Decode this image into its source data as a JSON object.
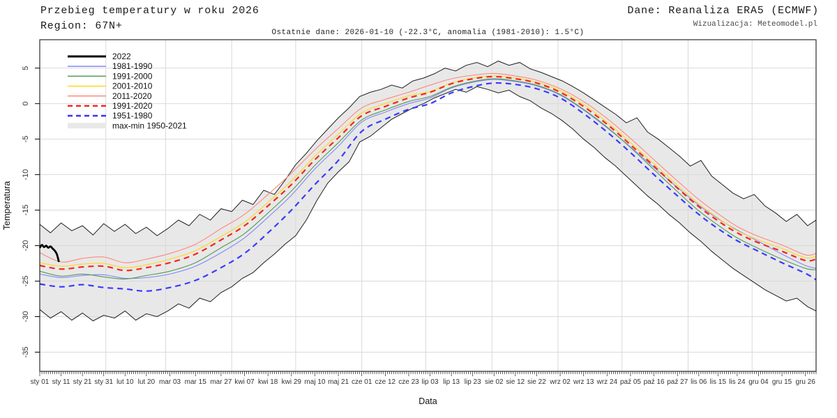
{
  "header": {
    "title_line1": "Przebieg temperatury w roku 2026",
    "title_line2": "Region: 67N+",
    "source": "Dane: Reanaliza ERA5 (ECMWF)",
    "credit": "Wizualizacja: Meteomodel.pl",
    "subtitle": "Ostatnie dane: 2026-01-10 (-22.3°C, anomalia (1981-2010): 1.5°C)"
  },
  "chart_data": {
    "type": "line",
    "title": "Przebieg temperatury w roku 2026",
    "region": "Region: 67N+",
    "xlabel": "Data",
    "ylabel": "Temperatura",
    "ylim": [
      -37.7,
      9.0
    ],
    "days_in_year": 365,
    "grid": true,
    "legend_position": "top-left",
    "colors": {
      "grid": "#d9d9d9",
      "band_fill": "#e8e8e8",
      "band_edge": "#1f1f1f",
      "axis": "#000000",
      "tick_text": "#333333"
    },
    "y_ticks": [
      5,
      0,
      -5,
      -10,
      -15,
      -20,
      -25,
      -30,
      -35
    ],
    "x_ticks": [
      {
        "label": "sty 01",
        "day": 1
      },
      {
        "label": "sty 11",
        "day": 11
      },
      {
        "label": "sty 21",
        "day": 21
      },
      {
        "label": "sty 31",
        "day": 31
      },
      {
        "label": "lut 10",
        "day": 41
      },
      {
        "label": "lut 20",
        "day": 51
      },
      {
        "label": "mar 03",
        "day": 62
      },
      {
        "label": "mar 15",
        "day": 74
      },
      {
        "label": "mar 27",
        "day": 86
      },
      {
        "label": "kwi 07",
        "day": 97
      },
      {
        "label": "kwi 18",
        "day": 108
      },
      {
        "label": "kwi 29",
        "day": 119
      },
      {
        "label": "maj 10",
        "day": 130
      },
      {
        "label": "maj 21",
        "day": 141
      },
      {
        "label": "cze 01",
        "day": 152
      },
      {
        "label": "cze 12",
        "day": 163
      },
      {
        "label": "cze 23",
        "day": 174
      },
      {
        "label": "lip 03",
        "day": 184
      },
      {
        "label": "lip 13",
        "day": 194
      },
      {
        "label": "lip 23",
        "day": 204
      },
      {
        "label": "sie 02",
        "day": 214
      },
      {
        "label": "sie 12",
        "day": 224
      },
      {
        "label": "sie 22",
        "day": 234
      },
      {
        "label": "wrz 02",
        "day": 245
      },
      {
        "label": "wrz 13",
        "day": 256
      },
      {
        "label": "wrz 24",
        "day": 267
      },
      {
        "label": "paź 05",
        "day": 278
      },
      {
        "label": "paź 16",
        "day": 289
      },
      {
        "label": "paź 27",
        "day": 300
      },
      {
        "label": "lis 06",
        "day": 310
      },
      {
        "label": "lis 15",
        "day": 319
      },
      {
        "label": "lis 24",
        "day": 328
      },
      {
        "label": "gru 04",
        "day": 338
      },
      {
        "label": "gru 15",
        "day": 349
      },
      {
        "label": "gru 26",
        "day": 360
      }
    ],
    "month_grid_days": [
      32,
      60,
      91,
      121,
      152,
      182,
      213,
      244,
      274,
      305,
      335
    ],
    "anchor_days": [
      1,
      11,
      21,
      31,
      41,
      51,
      62,
      74,
      86,
      97,
      108,
      119,
      130,
      141,
      152,
      163,
      174,
      184,
      194,
      204,
      214,
      224,
      234,
      245,
      256,
      267,
      278,
      289,
      300,
      310,
      319,
      328,
      338,
      349,
      360,
      365
    ],
    "band": {
      "name": "max-min 1950-2021",
      "days": [
        1,
        6,
        11,
        16,
        21,
        26,
        31,
        36,
        41,
        46,
        51,
        56,
        61,
        66,
        71,
        76,
        81,
        86,
        91,
        96,
        101,
        106,
        111,
        116,
        121,
        126,
        131,
        136,
        141,
        146,
        151,
        156,
        161,
        166,
        171,
        176,
        181,
        186,
        191,
        196,
        201,
        206,
        211,
        216,
        221,
        226,
        231,
        236,
        241,
        246,
        251,
        256,
        261,
        266,
        271,
        276,
        281,
        286,
        291,
        296,
        301,
        306,
        311,
        316,
        321,
        326,
        331,
        336,
        341,
        346,
        351,
        356,
        361,
        365
      ],
      "max": [
        -17.0,
        -18.2,
        -16.8,
        -17.9,
        -17.2,
        -18.5,
        -16.9,
        -18.0,
        -17.0,
        -18.3,
        -17.4,
        -18.6,
        -17.6,
        -16.4,
        -17.2,
        -15.6,
        -16.4,
        -14.8,
        -15.2,
        -13.6,
        -14.2,
        -12.2,
        -12.8,
        -10.8,
        -8.6,
        -7.0,
        -5.2,
        -3.6,
        -2.0,
        -0.6,
        1.0,
        1.6,
        2.0,
        2.6,
        2.2,
        3.2,
        3.6,
        4.2,
        5.0,
        4.6,
        5.4,
        5.8,
        5.2,
        6.0,
        5.4,
        5.8,
        4.9,
        4.4,
        3.8,
        3.2,
        2.4,
        1.5,
        0.5,
        -0.5,
        -1.5,
        -2.7,
        -2.0,
        -4.0,
        -5.0,
        -6.2,
        -7.4,
        -8.8,
        -8.0,
        -10.2,
        -11.4,
        -12.6,
        -13.4,
        -12.8,
        -14.4,
        -15.4,
        -16.6,
        -15.6,
        -17.2,
        -16.4
      ],
      "min": [
        -29.0,
        -30.2,
        -29.3,
        -30.5,
        -29.5,
        -30.6,
        -29.8,
        -30.2,
        -29.2,
        -30.5,
        -29.6,
        -30.0,
        -29.2,
        -28.2,
        -28.8,
        -27.4,
        -27.9,
        -26.6,
        -25.8,
        -24.6,
        -23.8,
        -22.4,
        -21.2,
        -19.8,
        -18.6,
        -16.4,
        -13.6,
        -11.2,
        -9.6,
        -8.2,
        -5.4,
        -4.6,
        -3.4,
        -2.2,
        -1.4,
        -0.6,
        0.0,
        0.8,
        1.4,
        2.0,
        1.6,
        2.4,
        2.0,
        1.5,
        1.9,
        1.0,
        0.4,
        -0.6,
        -1.4,
        -2.4,
        -3.6,
        -5.0,
        -6.2,
        -7.6,
        -8.8,
        -10.2,
        -11.6,
        -13.0,
        -14.2,
        -15.6,
        -16.8,
        -18.2,
        -19.4,
        -20.8,
        -22.0,
        -23.2,
        -24.2,
        -25.2,
        -26.2,
        -27.0,
        -27.8,
        -27.4,
        -28.6,
        -29.2
      ]
    },
    "series": [
      {
        "name": "1981-1990",
        "color": "#8585ff",
        "width": 1.1,
        "dash": "",
        "values": [
          -24.0,
          -24.5,
          -24.2,
          -24.1,
          -24.6,
          -24.5,
          -24.0,
          -22.9,
          -21.0,
          -18.9,
          -16.0,
          -12.9,
          -9.2,
          -6.0,
          -2.6,
          -1.2,
          0.0,
          0.8,
          2.2,
          3.0,
          3.4,
          3.1,
          2.5,
          1.2,
          -0.9,
          -3.4,
          -6.1,
          -9.0,
          -11.8,
          -14.3,
          -16.2,
          -17.8,
          -19.4,
          -21.2,
          -22.8,
          -23.2
        ]
      },
      {
        "name": "1991-2000",
        "color": "#4f9d55",
        "width": 1.1,
        "dash": "",
        "values": [
          -23.6,
          -24.3,
          -24.0,
          -24.4,
          -24.7,
          -24.2,
          -23.6,
          -22.4,
          -20.3,
          -18.3,
          -15.4,
          -12.3,
          -8.7,
          -5.5,
          -2.3,
          -0.9,
          0.3,
          1.0,
          2.3,
          3.1,
          3.5,
          3.2,
          2.6,
          1.3,
          -0.8,
          -3.3,
          -6.2,
          -9.3,
          -12.4,
          -15.1,
          -17.1,
          -18.9,
          -20.4,
          -21.9,
          -23.2,
          -23.4
        ]
      },
      {
        "name": "2001-2010",
        "color": "#ffd818",
        "width": 1.1,
        "dash": "",
        "values": [
          -22.4,
          -22.9,
          -22.6,
          -22.5,
          -23.1,
          -22.7,
          -21.9,
          -20.7,
          -18.7,
          -16.7,
          -13.9,
          -10.9,
          -7.4,
          -4.3,
          -1.3,
          0.0,
          1.1,
          1.7,
          2.9,
          3.6,
          3.9,
          3.6,
          3.0,
          1.8,
          -0.1,
          -2.6,
          -5.5,
          -8.5,
          -11.5,
          -14.1,
          -16.1,
          -17.9,
          -19.2,
          -20.4,
          -21.7,
          -21.5
        ]
      },
      {
        "name": "2011-2020",
        "color": "#ff887c",
        "width": 1.1,
        "dash": "",
        "values": [
          -21.0,
          -22.3,
          -21.8,
          -21.6,
          -22.4,
          -21.9,
          -21.1,
          -19.8,
          -17.6,
          -15.6,
          -12.8,
          -9.8,
          -6.5,
          -3.5,
          -0.6,
          0.6,
          1.6,
          2.6,
          3.5,
          4.0,
          4.25,
          3.9,
          3.3,
          2.1,
          0.3,
          -2.1,
          -4.9,
          -7.9,
          -10.9,
          -13.5,
          -15.5,
          -17.3,
          -18.7,
          -19.9,
          -21.3,
          -21.1
        ]
      },
      {
        "name": "1951-1980",
        "color": "#3a3aff",
        "width": 2.2,
        "dash": "8 6",
        "values": [
          -25.4,
          -25.8,
          -25.5,
          -25.9,
          -26.1,
          -26.4,
          -25.9,
          -24.9,
          -23.1,
          -21.1,
          -18.2,
          -15.0,
          -11.4,
          -8.0,
          -3.9,
          -2.2,
          -0.8,
          0.0,
          1.5,
          2.4,
          2.9,
          2.7,
          2.1,
          0.8,
          -1.4,
          -4.0,
          -6.9,
          -10.0,
          -13.0,
          -15.6,
          -17.6,
          -19.3,
          -20.8,
          -22.4,
          -23.9,
          -24.8
        ]
      },
      {
        "name": "1991-2020",
        "color": "#f5271c",
        "width": 2.2,
        "dash": "8 6",
        "values": [
          -22.8,
          -23.3,
          -23.0,
          -22.9,
          -23.5,
          -23.1,
          -22.4,
          -21.2,
          -19.2,
          -17.2,
          -14.4,
          -11.4,
          -7.9,
          -4.8,
          -1.7,
          -0.4,
          0.8,
          1.6,
          2.8,
          3.5,
          3.8,
          3.5,
          2.9,
          1.6,
          -0.4,
          -2.9,
          -5.8,
          -8.8,
          -11.9,
          -14.5,
          -16.5,
          -18.2,
          -19.6,
          -20.8,
          -22.1,
          -21.9
        ]
      },
      {
        "name": "2022",
        "color": "#000000",
        "width": 2.8,
        "dash": "",
        "days": [
          1,
          2,
          3,
          4,
          5,
          6,
          7,
          8,
          9,
          10
        ],
        "values": [
          -20.3,
          -19.9,
          -20.2,
          -20.0,
          -20.3,
          -20.1,
          -20.4,
          -20.7,
          -21.2,
          -22.3
        ]
      }
    ],
    "legend_order": [
      "2022",
      "1981-1990",
      "1991-2000",
      "2001-2010",
      "2011-2020",
      "1991-2020",
      "1951-1980",
      "max-min 1950-2021"
    ]
  }
}
